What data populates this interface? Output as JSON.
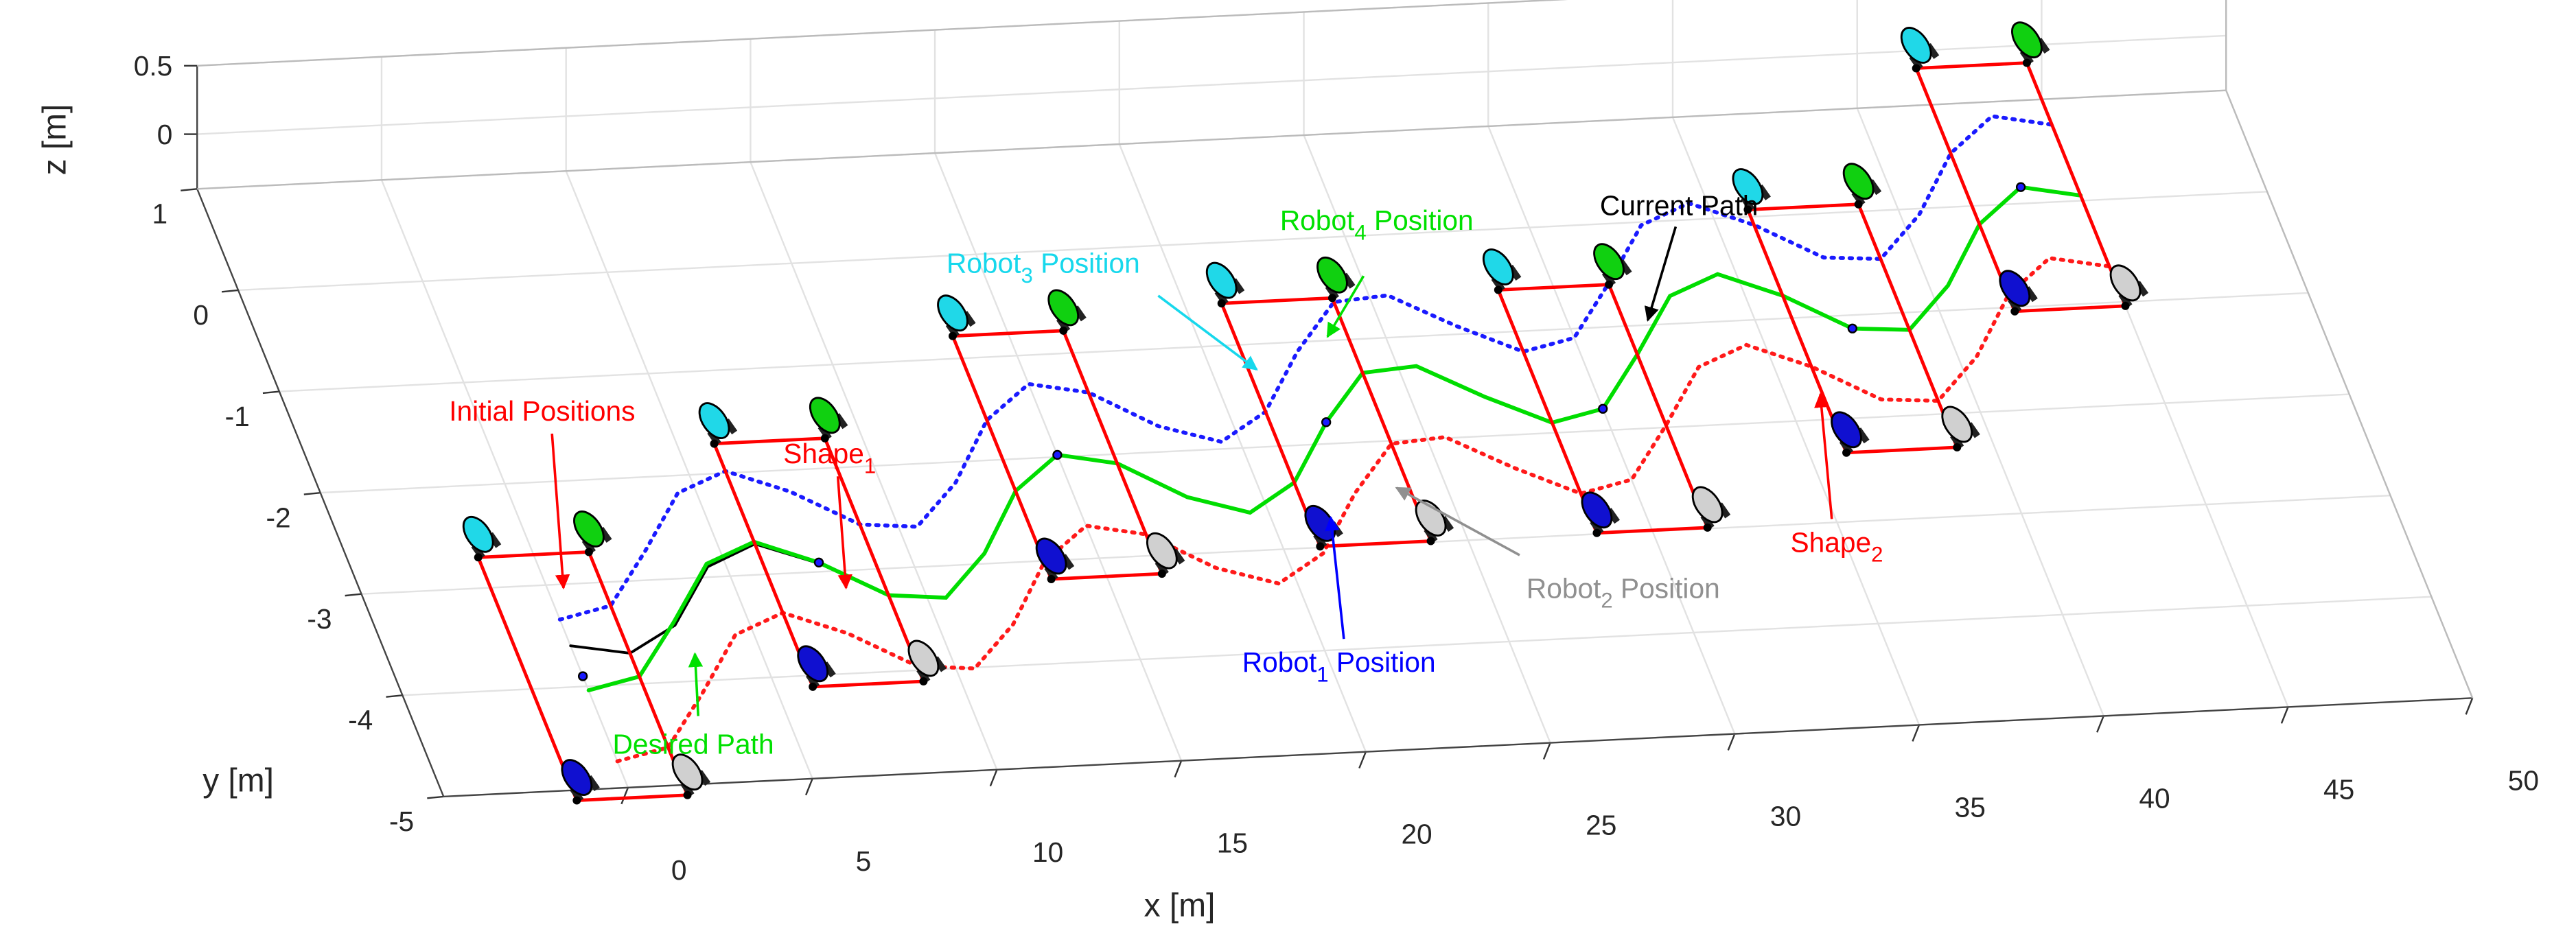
{
  "chart_data": {
    "type": "line3d",
    "xlabel": "x [m]",
    "ylabel": "y [m]",
    "zlabel": "z [m]",
    "xlim": [
      -5,
      50
    ],
    "ylim": [
      -5,
      1
    ],
    "zlim": [
      -0.4,
      0.5
    ],
    "xticks": [
      0,
      5,
      10,
      15,
      20,
      25,
      30,
      35,
      40,
      45,
      50
    ],
    "yticks": [
      -5,
      -4,
      -3,
      -2,
      -1,
      0,
      1
    ],
    "zticks": [
      0,
      0.5
    ],
    "grid": true,
    "x": [
      0,
      1.5,
      3,
      4.5,
      6,
      7.5,
      9,
      10.5,
      12,
      13.5,
      15,
      16.5,
      18,
      19.5,
      21,
      22.5,
      24,
      25.5,
      27,
      28.5,
      30,
      31.5,
      33,
      34.5,
      36,
      37.5,
      39,
      40.5,
      42,
      43.5,
      45
    ],
    "series": [
      {
        "color": "#ff1a1a",
        "style": "dotted",
        "values": [
          -4.74,
          -4.63,
          -4.12,
          -3.57,
          -3.38,
          -3.61,
          -3.96,
          -4.01,
          -3.6,
          -3.01,
          -2.68,
          -2.79,
          -3.15,
          -3.33,
          -3.06,
          -2.49,
          -2.03,
          -1.99,
          -2.32,
          -2.6,
          -2.49,
          -1.98,
          -1.43,
          -1.24,
          -1.48,
          -1.83,
          -1.87,
          -1.46,
          -0.88,
          -0.54,
          -0.65
        ]
      },
      {
        "color": "#1a1aff",
        "style": "dotted",
        "values": [
          -3.34,
          -3.23,
          -2.72,
          -2.17,
          -1.98,
          -2.21,
          -2.56,
          -2.61,
          -2.2,
          -1.61,
          -1.28,
          -1.39,
          -1.75,
          -1.93,
          -1.66,
          -1.09,
          -0.63,
          -0.59,
          -0.92,
          -1.2,
          -1.09,
          -0.58,
          -0.03,
          0.16,
          -0.08,
          -0.43,
          -0.47,
          -0.06,
          0.52,
          0.86,
          0.75
        ]
      },
      {
        "color": "#000000",
        "style": "solid",
        "values": [
          -3.6,
          -3.7,
          -3.45,
          -2.9,
          -2.7,
          -2.92,
          -3.26,
          -3.31,
          -2.9,
          -2.31,
          -1.98,
          -2.09,
          -2.45,
          -2.63,
          -2.36,
          -1.79,
          -1.33,
          -1.29,
          -1.62,
          -1.9,
          -1.79,
          -1.28,
          -0.73,
          -0.54,
          -0.78,
          -1.13,
          -1.17,
          -0.76,
          -0.18,
          0.16,
          0.05
        ]
      },
      {
        "color": "#00dd00",
        "style": "solid",
        "values": [
          -4.04,
          -3.93,
          -3.42,
          -2.87,
          -2.68,
          -2.91,
          -3.26,
          -3.31,
          -2.9,
          -2.31,
          -1.98,
          -2.09,
          -2.45,
          -2.63,
          -2.36,
          -1.79,
          -1.33,
          -1.29,
          -1.62,
          -1.9,
          -1.79,
          -1.28,
          -0.73,
          -0.54,
          -0.78,
          -1.13,
          -1.17,
          -0.76,
          -0.18,
          0.16,
          0.05
        ]
      }
    ],
    "formations": [
      {
        "x": 0,
        "y": -3.9
      },
      {
        "x": 7.5,
        "y": -2.91
      },
      {
        "x": 15,
        "y": -1.98
      },
      {
        "x": 22.5,
        "y": -1.79
      },
      {
        "x": 30,
        "y": -1.79
      },
      {
        "x": 37.5,
        "y": -1.13
      },
      {
        "x": 43.5,
        "y": 0.16
      }
    ],
    "robot_colors": [
      "#1010d0",
      "#d0d0d0",
      "#20d8e8",
      "#10d010"
    ],
    "annotations": [
      {
        "text": "Initial Positions",
        "color": "#ff0000"
      },
      {
        "text": "Shape",
        "sub": "1",
        "color": "#ff0000"
      },
      {
        "text": "Robot",
        "sub": "3",
        "suffix": " Position",
        "color": "#17d8ec"
      },
      {
        "text": "Robot",
        "sub": "4",
        "suffix": " Position",
        "color": "#00e000"
      },
      {
        "text": "Current Path",
        "color": "#000000"
      },
      {
        "text": "Shape",
        "sub": "2",
        "color": "#ff0000"
      },
      {
        "text": "Robot",
        "sub": "2",
        "suffix": " Position",
        "color": "#909090"
      },
      {
        "text": "Robot",
        "sub": "1",
        "suffix": " Position",
        "color": "#0000ff"
      },
      {
        "text": "Desired Path",
        "color": "#00e000"
      }
    ]
  }
}
